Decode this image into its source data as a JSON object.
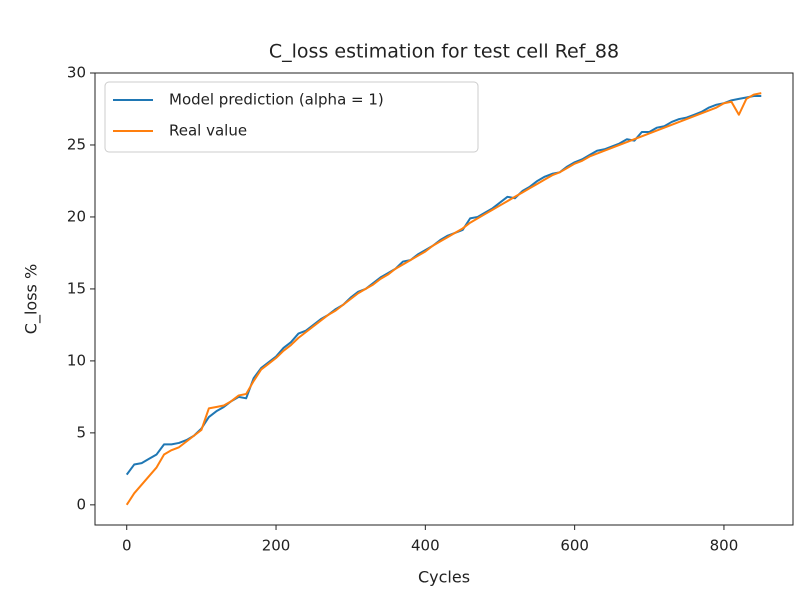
{
  "chart_data": {
    "type": "line",
    "title": "C_loss estimation for test cell Ref_88",
    "x_label": "Cycles",
    "y_label": "C_loss %",
    "x": [
      0,
      10,
      20,
      30,
      40,
      50,
      60,
      70,
      80,
      90,
      100,
      110,
      120,
      130,
      140,
      150,
      160,
      170,
      180,
      190,
      200,
      210,
      220,
      230,
      240,
      250,
      260,
      270,
      280,
      290,
      300,
      310,
      320,
      330,
      340,
      350,
      360,
      370,
      380,
      390,
      400,
      410,
      420,
      430,
      440,
      450,
      460,
      470,
      480,
      490,
      500,
      510,
      520,
      530,
      540,
      550,
      560,
      570,
      580,
      590,
      600,
      610,
      620,
      630,
      640,
      650,
      660,
      670,
      680,
      690,
      700,
      710,
      720,
      730,
      740,
      750,
      760,
      770,
      780,
      790,
      800,
      810,
      820,
      830,
      840,
      850
    ],
    "series": [
      {
        "name": "Model prediction (alpha = 1)",
        "color": "#1f77b4",
        "values": [
          2.1,
          2.8,
          2.9,
          3.2,
          3.5,
          4.2,
          4.2,
          4.3,
          4.5,
          4.8,
          5.3,
          6.1,
          6.5,
          6.8,
          7.2,
          7.5,
          7.4,
          8.8,
          9.5,
          9.9,
          10.3,
          10.9,
          11.3,
          11.9,
          12.1,
          12.5,
          12.9,
          13.2,
          13.6,
          13.9,
          14.4,
          14.8,
          15.0,
          15.4,
          15.8,
          16.1,
          16.4,
          16.9,
          17.0,
          17.4,
          17.7,
          18.0,
          18.4,
          18.7,
          18.9,
          19.1,
          19.9,
          20.0,
          20.3,
          20.6,
          21.0,
          21.4,
          21.3,
          21.8,
          22.1,
          22.5,
          22.8,
          23.0,
          23.1,
          23.5,
          23.8,
          24.0,
          24.3,
          24.6,
          24.7,
          24.9,
          25.1,
          25.4,
          25.3,
          25.9,
          25.9,
          26.2,
          26.3,
          26.6,
          26.8,
          26.9,
          27.1,
          27.3,
          27.6,
          27.8,
          27.9,
          28.1,
          28.2,
          28.3,
          28.4,
          28.4
        ]
      },
      {
        "name": "Real value",
        "color": "#ff7f0e",
        "values": [
          0.0,
          0.8,
          1.4,
          2.0,
          2.6,
          3.5,
          3.8,
          4.0,
          4.4,
          4.8,
          5.2,
          6.7,
          6.8,
          6.9,
          7.2,
          7.6,
          7.7,
          8.6,
          9.4,
          9.8,
          10.2,
          10.7,
          11.1,
          11.6,
          12.0,
          12.4,
          12.8,
          13.2,
          13.5,
          13.9,
          14.3,
          14.7,
          15.0,
          15.3,
          15.7,
          16.0,
          16.4,
          16.7,
          17.0,
          17.3,
          17.6,
          18.0,
          18.3,
          18.6,
          18.9,
          19.2,
          19.6,
          19.9,
          20.2,
          20.5,
          20.8,
          21.1,
          21.4,
          21.7,
          22.0,
          22.3,
          22.6,
          22.9,
          23.1,
          23.4,
          23.7,
          23.9,
          24.2,
          24.4,
          24.6,
          24.8,
          25.0,
          25.2,
          25.4,
          25.6,
          25.8,
          26.0,
          26.2,
          26.4,
          26.6,
          26.8,
          27.0,
          27.2,
          27.4,
          27.6,
          27.9,
          28.0,
          27.1,
          28.2,
          28.5,
          28.6
        ]
      }
    ],
    "xlim": [
      -42.5,
      892.5
    ],
    "ylim": [
      -1.4,
      30
    ],
    "xticks": [
      0,
      200,
      400,
      600,
      800
    ],
    "yticks": [
      0,
      5,
      10,
      15,
      20,
      25,
      30
    ],
    "legend": "upper left",
    "grid": false
  }
}
